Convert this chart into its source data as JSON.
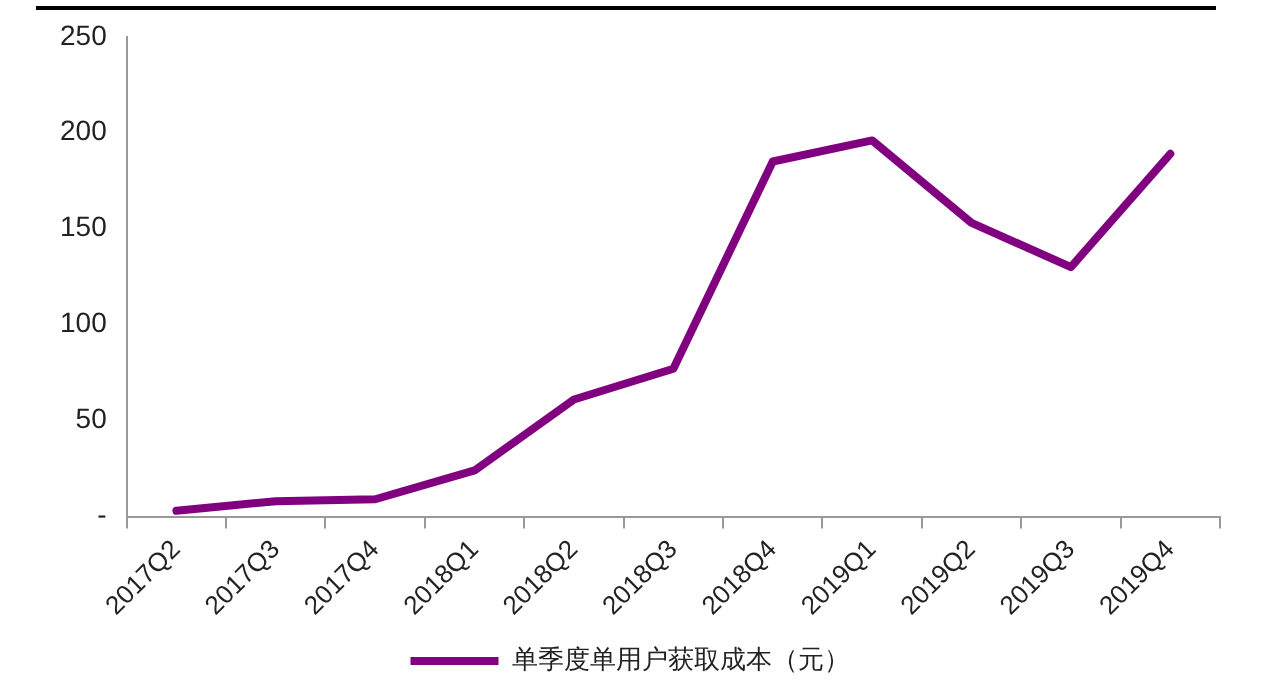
{
  "chart_data": {
    "type": "line",
    "categories": [
      "2017Q2",
      "2017Q3",
      "2017Q4",
      "2018Q1",
      "2018Q2",
      "2018Q3",
      "2018Q4",
      "2019Q1",
      "2019Q2",
      "2019Q3",
      "2019Q4"
    ],
    "series": [
      {
        "name": "单季度单用户获取成本（元）",
        "color": "#800080",
        "values": [
          3,
          8,
          9,
          24,
          61,
          77,
          185,
          196,
          153,
          130,
          189
        ]
      }
    ],
    "ylim": [
      0,
      250
    ],
    "yticks": [
      {
        "value": 0,
        "label": "-"
      },
      50,
      100,
      150,
      200,
      250
    ],
    "grid": false,
    "legend": "bottom",
    "marker": "none",
    "line_style": "solid"
  }
}
